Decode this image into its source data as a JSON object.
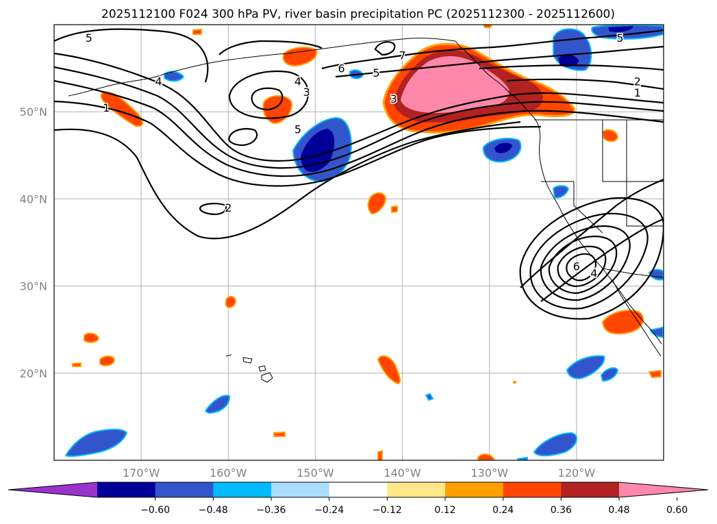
{
  "title": "2025112100 F024 300 hPa PV, river basin precipitation PC (2025112300 - 2025112600)",
  "map": {
    "projection": "PlateCarree",
    "lon_range": [
      180,
      110
    ],
    "lat_range": [
      10,
      60
    ],
    "lat_labels": [
      "20°N",
      "30°N",
      "40°N",
      "50°N"
    ],
    "lon_labels": [
      "170°W",
      "160°W",
      "150°W",
      "140°W",
      "130°W",
      "120°W"
    ]
  },
  "contour_labels": [
    {
      "text": "5",
      "lon": -176,
      "lat": 58.5
    },
    {
      "text": "4",
      "lon": -168,
      "lat": 53.5
    },
    {
      "text": "1",
      "lon": -174,
      "lat": 50.5
    },
    {
      "text": "7",
      "lon": -140,
      "lat": 56.5
    },
    {
      "text": "6",
      "lon": -147,
      "lat": 55
    },
    {
      "text": "4",
      "lon": -152,
      "lat": 53.5
    },
    {
      "text": "3",
      "lon": -151,
      "lat": 52.3
    },
    {
      "text": "5",
      "lon": -143,
      "lat": 54.5
    },
    {
      "text": "3",
      "lon": -141,
      "lat": 51.5
    },
    {
      "text": "5",
      "lon": -152,
      "lat": 48
    },
    {
      "text": "2",
      "lon": -160,
      "lat": 39
    },
    {
      "text": "5",
      "lon": -115,
      "lat": 58.5
    },
    {
      "text": "2",
      "lon": -113,
      "lat": 53.5
    },
    {
      "text": "1",
      "lon": -113,
      "lat": 52.2
    },
    {
      "text": "6",
      "lon": -120,
      "lat": 32.3
    },
    {
      "text": "4",
      "lon": -118,
      "lat": 31.5
    }
  ],
  "colorbar": {
    "colors": [
      "#9933cc",
      "#000099",
      "#3355cc",
      "#00bbff",
      "#aaddff",
      "#ffffff",
      "#ffe88a",
      "#ffa000",
      "#ff4500",
      "#b22222",
      "#ff88aa"
    ],
    "ticks": [
      "−0.60",
      "−0.48",
      "−0.36",
      "−0.24",
      "−0.12",
      "0.12",
      "0.24",
      "0.36",
      "0.48",
      "0.60"
    ]
  }
}
